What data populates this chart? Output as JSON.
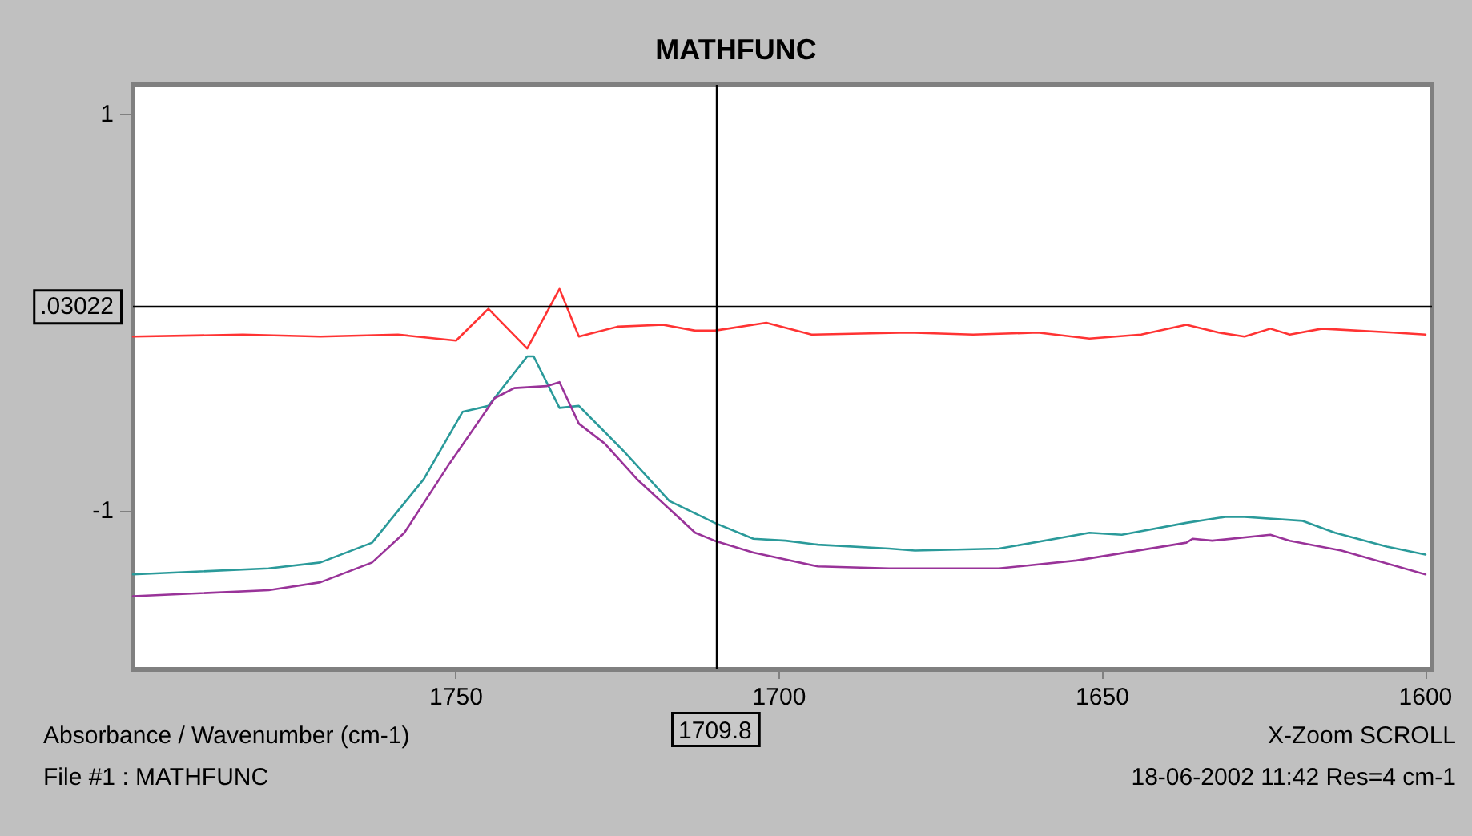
{
  "chart_data": {
    "type": "line",
    "title": "MATHFUNC",
    "xlabel": "Absorbance / Wavenumber (cm-1)",
    "annotations": [
      "X-Zoom SCROLL",
      "File #1 : MATHFUNC",
      "18-06-2002 11:42 Res=4 cm-1"
    ],
    "xlim": [
      1800,
      1599
    ],
    "xticks": [
      1750,
      1700,
      1650,
      1600
    ],
    "ylim": [
      -1.8,
      1.15
    ],
    "yticks": [
      1,
      -1
    ],
    "grid": false,
    "marker": "none",
    "line_style": "solid",
    "ref_lines": [
      {
        "axis": "y",
        "value": 0.03022,
        "label": ".03022",
        "color": "#000000"
      },
      {
        "axis": "x",
        "value": 1709.8,
        "label": "1709.8",
        "color": "#000000"
      }
    ],
    "series": [
      {
        "color": "#ff3333",
        "x": [
          1800,
          1783,
          1771,
          1759,
          1750,
          1745,
          1739,
          1734,
          1731,
          1725,
          1718,
          1713,
          1710,
          1702,
          1695,
          1680,
          1670,
          1660,
          1652,
          1644,
          1637,
          1632,
          1628,
          1624,
          1621,
          1616,
          1605,
          1600
        ],
        "values": [
          -0.12,
          -0.11,
          -0.12,
          -0.11,
          -0.14,
          0.02,
          -0.18,
          0.12,
          -0.12,
          -0.07,
          -0.06,
          -0.09,
          -0.09,
          -0.05,
          -0.11,
          -0.1,
          -0.11,
          -0.1,
          -0.13,
          -0.11,
          -0.06,
          -0.1,
          -0.12,
          -0.08,
          -0.11,
          -0.08,
          -0.1,
          -0.11
        ]
      },
      {
        "color": "#2a9a9a",
        "x": [
          1800,
          1779,
          1771,
          1763,
          1755,
          1749,
          1745,
          1739,
          1738,
          1734,
          1731,
          1724,
          1717,
          1710,
          1704,
          1699,
          1694,
          1683,
          1679,
          1666,
          1652,
          1647,
          1637,
          1631,
          1628,
          1619,
          1614,
          1606,
          1600
        ],
        "values": [
          -1.32,
          -1.29,
          -1.26,
          -1.16,
          -0.84,
          -0.5,
          -0.47,
          -0.22,
          -0.22,
          -0.48,
          -0.47,
          -0.7,
          -0.95,
          -1.06,
          -1.14,
          -1.15,
          -1.17,
          -1.19,
          -1.2,
          -1.19,
          -1.11,
          -1.12,
          -1.06,
          -1.03,
          -1.03,
          -1.05,
          -1.11,
          -1.18,
          -1.22
        ]
      },
      {
        "color": "#993399",
        "x": [
          1800,
          1779,
          1771,
          1763,
          1758,
          1751,
          1744,
          1741,
          1736,
          1734,
          1731,
          1727,
          1722,
          1713,
          1710,
          1704,
          1694,
          1683,
          1666,
          1654,
          1637,
          1636,
          1633,
          1624,
          1621,
          1613,
          1600
        ],
        "values": [
          -1.43,
          -1.4,
          -1.36,
          -1.26,
          -1.11,
          -0.76,
          -0.43,
          -0.38,
          -0.37,
          -0.35,
          -0.56,
          -0.66,
          -0.84,
          -1.11,
          -1.15,
          -1.21,
          -1.28,
          -1.29,
          -1.29,
          -1.25,
          -1.16,
          -1.14,
          -1.15,
          -1.12,
          -1.15,
          -1.2,
          -1.32
        ]
      }
    ]
  }
}
